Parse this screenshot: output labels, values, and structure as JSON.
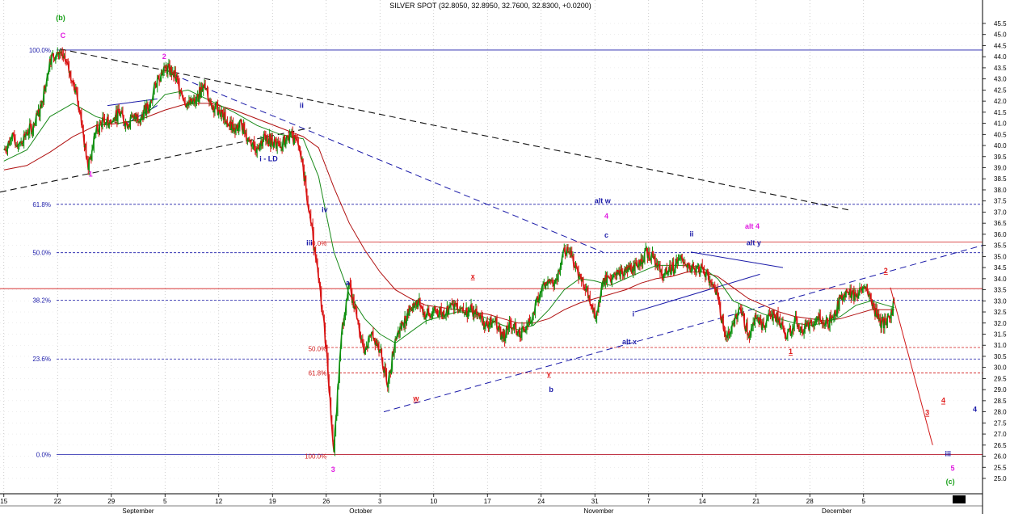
{
  "chart_data": {
    "type": "line",
    "title": "SILVER SPOT (32.8050, 32.8950, 32.7600, 32.8300, +0.0200)",
    "ylim": [
      24.5,
      46.0
    ],
    "y_ticks": [
      25.0,
      25.5,
      26.0,
      26.5,
      27.0,
      27.5,
      28.0,
      28.5,
      29.0,
      29.5,
      30.0,
      30.5,
      31.0,
      31.5,
      32.0,
      32.5,
      33.0,
      33.5,
      34.0,
      34.5,
      35.0,
      35.5,
      36.0,
      36.5,
      37.0,
      37.5,
      38.0,
      38.5,
      39.0,
      39.5,
      40.0,
      40.5,
      41.0,
      41.5,
      42.0,
      42.5,
      43.0,
      43.5,
      44.0,
      44.5,
      45.0,
      45.5
    ],
    "x_ticks": [
      {
        "label": "15",
        "x": 0
      },
      {
        "label": "22",
        "x": 7
      },
      {
        "label": "29",
        "x": 14
      },
      {
        "label": "5",
        "x": 21
      },
      {
        "label": "12",
        "x": 28
      },
      {
        "label": "19",
        "x": 35
      },
      {
        "label": "26",
        "x": 42
      },
      {
        "label": "3",
        "x": 49
      },
      {
        "label": "10",
        "x": 56
      },
      {
        "label": "17",
        "x": 63
      },
      {
        "label": "24",
        "x": 70
      },
      {
        "label": "31",
        "x": 77
      },
      {
        "label": "7",
        "x": 84
      },
      {
        "label": "14",
        "x": 91
      },
      {
        "label": "21",
        "x": 98
      },
      {
        "label": "28",
        "x": 105
      },
      {
        "label": "5",
        "x": 112
      }
    ],
    "months": [
      {
        "label": "September",
        "x": 17.5
      },
      {
        "label": "October",
        "x": 46.5
      },
      {
        "label": "November",
        "x": 77.5
      },
      {
        "label": "December",
        "x": 108.5
      }
    ],
    "x_range": [
      -0.5,
      127.5
    ],
    "price": [
      [
        0,
        39.8
      ],
      [
        1,
        40.3
      ],
      [
        2,
        40.1
      ],
      [
        3,
        40.6
      ],
      [
        4,
        40.9
      ],
      [
        5,
        42.0
      ],
      [
        6,
        43.9
      ],
      [
        7,
        44.2
      ],
      [
        8,
        43.8
      ],
      [
        9,
        42.9
      ],
      [
        10,
        41.5
      ],
      [
        11,
        38.9
      ],
      [
        12,
        40.6
      ],
      [
        13,
        41.2
      ],
      [
        14,
        41.0
      ],
      [
        15,
        41.5
      ],
      [
        16,
        41.0
      ],
      [
        17,
        41.2
      ],
      [
        18,
        41.4
      ],
      [
        19,
        41.8
      ],
      [
        20,
        43.0
      ],
      [
        21,
        43.5
      ],
      [
        22,
        43.3
      ],
      [
        23,
        42.5
      ],
      [
        24,
        41.8
      ],
      [
        25,
        42.0
      ],
      [
        26,
        42.7
      ],
      [
        27,
        41.9
      ],
      [
        28,
        41.6
      ],
      [
        29,
        41.1
      ],
      [
        30,
        40.8
      ],
      [
        31,
        40.9
      ],
      [
        32,
        40.2
      ],
      [
        33,
        39.9
      ],
      [
        34,
        40.5
      ],
      [
        35,
        40.1
      ],
      [
        36,
        39.9
      ],
      [
        37,
        40.4
      ],
      [
        38,
        40.3
      ],
      [
        39,
        39.0
      ],
      [
        40,
        36.5
      ],
      [
        41,
        34.0
      ],
      [
        42,
        31.0
      ],
      [
        43,
        26.2
      ],
      [
        44,
        31.5
      ],
      [
        45,
        33.8
      ],
      [
        46,
        32.2
      ],
      [
        47,
        30.6
      ],
      [
        48,
        31.6
      ],
      [
        49,
        30.8
      ],
      [
        50,
        29.1
      ],
      [
        51,
        31.3
      ],
      [
        52,
        32.0
      ],
      [
        53,
        32.6
      ],
      [
        54,
        33.0
      ],
      [
        55,
        32.3
      ],
      [
        56,
        32.6
      ],
      [
        57,
        32.4
      ],
      [
        58,
        32.7
      ],
      [
        59,
        32.9
      ],
      [
        60,
        32.5
      ],
      [
        61,
        32.6
      ],
      [
        62,
        32.2
      ],
      [
        63,
        31.9
      ],
      [
        64,
        32.1
      ],
      [
        65,
        31.3
      ],
      [
        66,
        32.0
      ],
      [
        67,
        31.6
      ],
      [
        68,
        31.7
      ],
      [
        69,
        32.5
      ],
      [
        70,
        33.4
      ],
      [
        71,
        33.8
      ],
      [
        72,
        34.0
      ],
      [
        73,
        35.4
      ],
      [
        74,
        35.0
      ],
      [
        75,
        34.2
      ],
      [
        76,
        33.6
      ],
      [
        77,
        32.2
      ],
      [
        78,
        33.8
      ],
      [
        79,
        34.0
      ],
      [
        80,
        34.2
      ],
      [
        81,
        34.3
      ],
      [
        82,
        34.6
      ],
      [
        83,
        34.9
      ],
      [
        84,
        35.2
      ],
      [
        85,
        34.7
      ],
      [
        86,
        34.2
      ],
      [
        87,
        34.4
      ],
      [
        88,
        34.9
      ],
      [
        89,
        34.5
      ],
      [
        90,
        34.4
      ],
      [
        91,
        34.5
      ],
      [
        92,
        33.9
      ],
      [
        93,
        33.2
      ],
      [
        94,
        31.4
      ],
      [
        95,
        32.0
      ],
      [
        96,
        32.6
      ],
      [
        97,
        31.5
      ],
      [
        98,
        32.2
      ],
      [
        99,
        31.9
      ],
      [
        100,
        32.4
      ],
      [
        101,
        32.2
      ],
      [
        102,
        31.3
      ],
      [
        103,
        32.1
      ],
      [
        104,
        31.6
      ],
      [
        105,
        32.0
      ],
      [
        106,
        32.3
      ],
      [
        107,
        31.9
      ],
      [
        108,
        32.2
      ],
      [
        109,
        33.1
      ],
      [
        110,
        33.4
      ],
      [
        111,
        33.2
      ],
      [
        112,
        33.6
      ],
      [
        113,
        33.0
      ],
      [
        114,
        32.1
      ],
      [
        115,
        31.9
      ],
      [
        116,
        32.9
      ]
    ],
    "ma_fast": [
      [
        0,
        39.3
      ],
      [
        3,
        39.8
      ],
      [
        6,
        41.3
      ],
      [
        9,
        41.9
      ],
      [
        12,
        41.3
      ],
      [
        15,
        41.0
      ],
      [
        18,
        41.2
      ],
      [
        21,
        42.3
      ],
      [
        24,
        42.5
      ],
      [
        27,
        42.0
      ],
      [
        30,
        41.5
      ],
      [
        33,
        40.9
      ],
      [
        36,
        40.5
      ],
      [
        39,
        40.3
      ],
      [
        41,
        38.6
      ],
      [
        43,
        35.2
      ],
      [
        45,
        33.3
      ],
      [
        47,
        32.2
      ],
      [
        49,
        31.5
      ],
      [
        51,
        31.1
      ],
      [
        53,
        31.6
      ],
      [
        55,
        32.1
      ],
      [
        57,
        32.3
      ],
      [
        59,
        32.5
      ],
      [
        61,
        32.5
      ],
      [
        63,
        32.2
      ],
      [
        65,
        31.9
      ],
      [
        67,
        31.7
      ],
      [
        69,
        31.9
      ],
      [
        71,
        32.6
      ],
      [
        73,
        33.5
      ],
      [
        75,
        34.0
      ],
      [
        77,
        33.9
      ],
      [
        79,
        33.7
      ],
      [
        81,
        34.0
      ],
      [
        83,
        34.3
      ],
      [
        85,
        34.6
      ],
      [
        87,
        34.6
      ],
      [
        89,
        34.6
      ],
      [
        91,
        34.5
      ],
      [
        93,
        34.0
      ],
      [
        95,
        33.0
      ],
      [
        97,
        32.7
      ],
      [
        99,
        32.4
      ],
      [
        101,
        32.2
      ],
      [
        103,
        32.0
      ],
      [
        105,
        31.9
      ],
      [
        107,
        32.0
      ],
      [
        109,
        32.3
      ],
      [
        111,
        32.8
      ],
      [
        113,
        33.0
      ],
      [
        115,
        32.8
      ],
      [
        116,
        32.7
      ]
    ],
    "ma_slow": [
      [
        0,
        38.9
      ],
      [
        3,
        39.1
      ],
      [
        6,
        39.7
      ],
      [
        9,
        40.4
      ],
      [
        12,
        40.9
      ],
      [
        15,
        41.0
      ],
      [
        18,
        41.2
      ],
      [
        21,
        41.6
      ],
      [
        24,
        41.9
      ],
      [
        27,
        41.9
      ],
      [
        30,
        41.6
      ],
      [
        33,
        41.2
      ],
      [
        36,
        40.8
      ],
      [
        39,
        40.4
      ],
      [
        41,
        39.9
      ],
      [
        43,
        38.1
      ],
      [
        45,
        36.5
      ],
      [
        47,
        35.3
      ],
      [
        49,
        34.3
      ],
      [
        51,
        33.5
      ],
      [
        53,
        33.1
      ],
      [
        55,
        32.8
      ],
      [
        57,
        32.7
      ],
      [
        59,
        32.6
      ],
      [
        61,
        32.5
      ],
      [
        63,
        32.4
      ],
      [
        65,
        32.2
      ],
      [
        67,
        32.0
      ],
      [
        69,
        32.0
      ],
      [
        71,
        32.2
      ],
      [
        73,
        32.6
      ],
      [
        75,
        32.9
      ],
      [
        77,
        33.1
      ],
      [
        79,
        33.3
      ],
      [
        81,
        33.5
      ],
      [
        83,
        33.8
      ],
      [
        85,
        34.0
      ],
      [
        87,
        34.1
      ],
      [
        89,
        34.3
      ],
      [
        91,
        34.3
      ],
      [
        93,
        34.1
      ],
      [
        95,
        33.6
      ],
      [
        97,
        33.1
      ],
      [
        99,
        32.8
      ],
      [
        101,
        32.5
      ],
      [
        103,
        32.3
      ],
      [
        105,
        32.2
      ],
      [
        107,
        32.1
      ],
      [
        109,
        32.2
      ],
      [
        111,
        32.4
      ],
      [
        113,
        32.6
      ],
      [
        115,
        32.6
      ],
      [
        116,
        32.6
      ]
    ],
    "fib_levels": [
      {
        "label": "100.0%",
        "y": 44.3,
        "color": "#1a1aa8"
      },
      {
        "label": "61.8%",
        "y": 37.35,
        "color": "#1a1aa8"
      },
      {
        "label": "50.0%",
        "y": 35.17,
        "color": "#1a1aa8"
      },
      {
        "label": "38.2%",
        "y": 33.03,
        "color": "#1a1aa8"
      },
      {
        "label": "23.6%",
        "y": 30.38,
        "color": "#1a1aa8"
      },
      {
        "label": "0.0%",
        "y": 26.07,
        "color": "#1a1aa8"
      }
    ],
    "red_fib_labels": [
      {
        "label": "0.0%",
        "x": 45,
        "y": 35.6
      },
      {
        "label": "50.0%",
        "x": 45,
        "y": 30.85
      },
      {
        "label": "61.8%",
        "x": 45,
        "y": 29.75
      },
      {
        "label": "100.0%",
        "x": 45,
        "y": 26.0
      }
    ],
    "hlines_solid_red": [
      35.65,
      33.55,
      26.07
    ],
    "hlines_dash_red": [
      30.9,
      29.75
    ],
    "wave_labels": [
      {
        "text": "(b)",
        "x": 7.4,
        "y": 45.65,
        "color": "#1aa01a"
      },
      {
        "text": "C",
        "x": 7.7,
        "y": 44.85,
        "color": "#e01ae0"
      },
      {
        "text": "2",
        "x": 20.9,
        "y": 43.9,
        "color": "#e01ae0"
      },
      {
        "text": "1",
        "x": 11.3,
        "y": 38.6,
        "color": "#e01ae0"
      },
      {
        "text": "ii",
        "x": 38.8,
        "y": 41.7,
        "color": "#1a1aa8"
      },
      {
        "text": "i - LD",
        "x": 34.5,
        "y": 39.3,
        "color": "#1a1aa8"
      },
      {
        "text": "iv",
        "x": 41.8,
        "y": 37.0,
        "color": "#1a1aa8"
      },
      {
        "text": "iii",
        "x": 39.8,
        "y": 35.5,
        "color": "#1a1aa8"
      },
      {
        "text": "a",
        "x": 44.8,
        "y": 33.7,
        "color": "#1a1aa8"
      },
      {
        "text": "3",
        "x": 42.9,
        "y": 25.3,
        "color": "#e01ae0"
      },
      {
        "text": "x",
        "x": 61.1,
        "y": 34.0,
        "color": "#e01a1a"
      },
      {
        "text": "w",
        "x": 53.7,
        "y": 28.5,
        "color": "#e01a1a"
      },
      {
        "text": "y",
        "x": 71.0,
        "y": 29.6,
        "color": "#e01a1a"
      },
      {
        "text": "b",
        "x": 71.3,
        "y": 28.9,
        "color": "#1a1aa8"
      },
      {
        "text": "alt w",
        "x": 78.0,
        "y": 37.4,
        "color": "#1a1aa8"
      },
      {
        "text": "4",
        "x": 78.5,
        "y": 36.7,
        "color": "#e01ae0"
      },
      {
        "text": "c",
        "x": 78.5,
        "y": 35.85,
        "color": "#1a1aa8"
      },
      {
        "text": "alt x",
        "x": 81.5,
        "y": 31.05,
        "color": "#1a1aa8"
      },
      {
        "text": "i",
        "x": 82.0,
        "y": 32.3,
        "color": "#1a1aa8"
      },
      {
        "text": "ii",
        "x": 89.6,
        "y": 35.9,
        "color": "#1a1aa8"
      },
      {
        "text": "alt 4",
        "x": 97.5,
        "y": 36.25,
        "color": "#e01ae0"
      },
      {
        "text": "alt y",
        "x": 97.7,
        "y": 35.5,
        "color": "#1a1aa8"
      },
      {
        "text": "1",
        "x": 102.5,
        "y": 30.6,
        "color": "#e01a1a"
      },
      {
        "text": "2",
        "x": 114.9,
        "y": 34.25,
        "color": "#e01a1a"
      },
      {
        "text": "3",
        "x": 120.3,
        "y": 27.85,
        "color": "#e01a1a"
      },
      {
        "text": "4",
        "x": 122.4,
        "y": 28.4,
        "color": "#e01a1a"
      },
      {
        "text": "4",
        "x": 126.5,
        "y": 28.0,
        "color": "#1a1aa8"
      },
      {
        "text": "iii",
        "x": 123.0,
        "y": 26.0,
        "color": "#1a1aa8"
      },
      {
        "text": "5",
        "x": 123.6,
        "y": 25.35,
        "color": "#e01ae0"
      },
      {
        "text": "(c)",
        "x": 123.3,
        "y": 24.75,
        "color": "#1aa01a"
      }
    ]
  }
}
